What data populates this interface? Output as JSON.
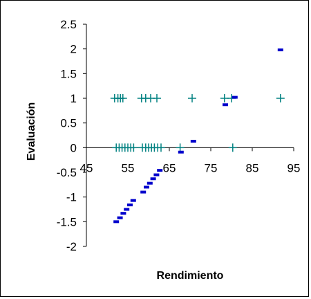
{
  "chart_data": {
    "type": "scatter",
    "title": "",
    "xlabel": "Rendimiento",
    "ylabel": "Evaluación",
    "xlim": [
      45,
      95
    ],
    "ylim": [
      -2,
      2.5
    ],
    "xticks": [
      45,
      55,
      65,
      75,
      85,
      95
    ],
    "yticks": [
      -2,
      -1.5,
      -1,
      -0.5,
      0,
      0.5,
      1,
      1.5,
      2,
      2.5
    ],
    "xtick_labels": [
      "45",
      "55",
      "65",
      "75",
      "85",
      "95"
    ],
    "ytick_labels": [
      "-2",
      "-1.5",
      "-1",
      "-0.5",
      "0",
      "0.5",
      "1",
      "1.5",
      "2",
      "2.5"
    ],
    "grid": false,
    "legend": "none",
    "series": [
      {
        "marker": "plus",
        "color": "#008080",
        "points": [
          {
            "x": 51.8,
            "y": 1
          },
          {
            "x": 52.6,
            "y": 1
          },
          {
            "x": 53.2,
            "y": 1
          },
          {
            "x": 53.8,
            "y": 1
          },
          {
            "x": 58.3,
            "y": 1
          },
          {
            "x": 59.3,
            "y": 1
          },
          {
            "x": 60.5,
            "y": 1
          },
          {
            "x": 62,
            "y": 1
          },
          {
            "x": 70.5,
            "y": 1
          },
          {
            "x": 78.3,
            "y": 1
          },
          {
            "x": 80,
            "y": 1
          },
          {
            "x": 91.8,
            "y": 1
          },
          {
            "x": 52.2,
            "y": 0
          },
          {
            "x": 52.9,
            "y": 0
          },
          {
            "x": 53.6,
            "y": 0
          },
          {
            "x": 54.3,
            "y": 0
          },
          {
            "x": 55,
            "y": 0
          },
          {
            "x": 55.7,
            "y": 0
          },
          {
            "x": 56.4,
            "y": 0
          },
          {
            "x": 58.5,
            "y": 0
          },
          {
            "x": 59.3,
            "y": 0
          },
          {
            "x": 60,
            "y": 0
          },
          {
            "x": 60.7,
            "y": 0
          },
          {
            "x": 61.4,
            "y": 0
          },
          {
            "x": 62.2,
            "y": 0
          },
          {
            "x": 63,
            "y": 0
          },
          {
            "x": 67.6,
            "y": 0
          },
          {
            "x": 80.3,
            "y": 0
          }
        ]
      },
      {
        "marker": "dash",
        "color": "#0000cc",
        "points": [
          {
            "x": 52.2,
            "y": -1.5
          },
          {
            "x": 53.1,
            "y": -1.42
          },
          {
            "x": 53.9,
            "y": -1.33
          },
          {
            "x": 54.7,
            "y": -1.25
          },
          {
            "x": 55.5,
            "y": -1.16
          },
          {
            "x": 56.3,
            "y": -1.07
          },
          {
            "x": 58.7,
            "y": -0.9
          },
          {
            "x": 59.5,
            "y": -0.8
          },
          {
            "x": 60.3,
            "y": -0.72
          },
          {
            "x": 61.1,
            "y": -0.63
          },
          {
            "x": 61.9,
            "y": -0.55
          },
          {
            "x": 62.7,
            "y": -0.46
          },
          {
            "x": 67.8,
            "y": -0.09
          },
          {
            "x": 70.8,
            "y": 0.13
          },
          {
            "x": 78.5,
            "y": 0.87
          },
          {
            "x": 80.8,
            "y": 1.02
          },
          {
            "x": 91.8,
            "y": 1.98
          }
        ]
      }
    ]
  }
}
